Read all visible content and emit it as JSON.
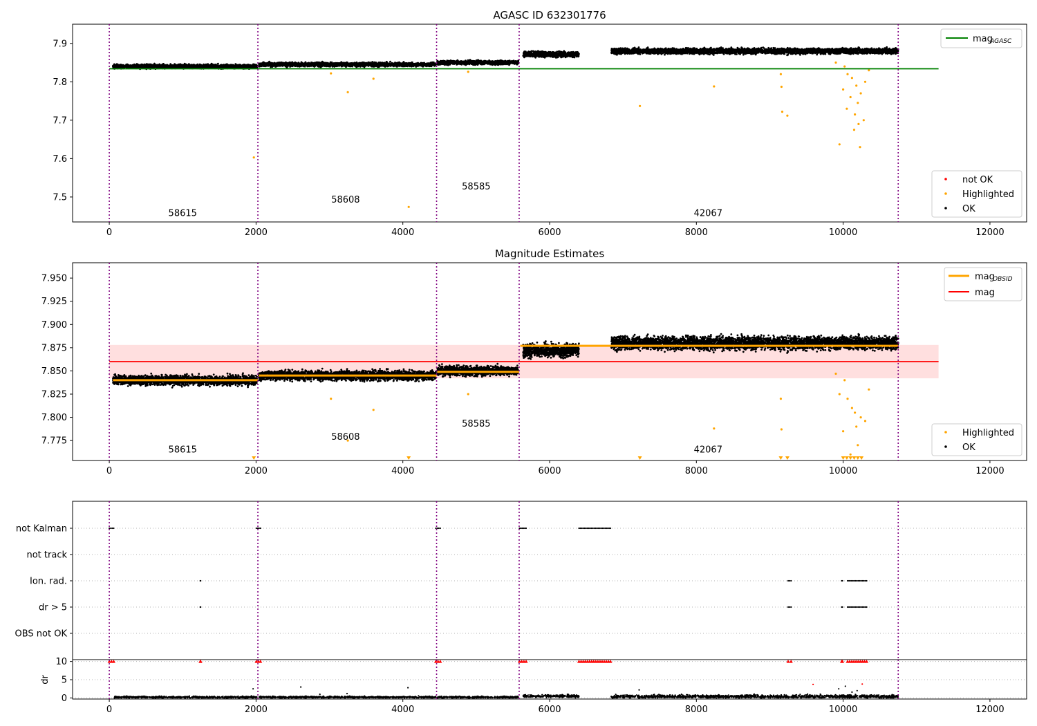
{
  "colors": {
    "ok": "#000000",
    "highlighted": "#ffa500",
    "not_ok": "#ff0000",
    "agasc_line": "#008000",
    "mag_line": "#ff0000",
    "mag_band": "#ffdfdf",
    "obs_line": "#ffa500",
    "obs_boundary": "#800080",
    "ylabel_grid": "#b0b0b0"
  },
  "obs_boundaries": [
    0,
    2025,
    4460,
    5585,
    10750
  ],
  "chart_data": [
    {
      "id": "top",
      "type": "scatter",
      "title": "AGASC ID 632301776",
      "xlim": [
        -500,
        12500
      ],
      "ylim": [
        7.435,
        7.95
      ],
      "xticks": [
        0,
        2000,
        4000,
        6000,
        8000,
        10000,
        12000
      ],
      "yticks": [
        7.5,
        7.6,
        7.7,
        7.8,
        7.9
      ],
      "ytick_labels": [
        "7.5",
        "7.6",
        "7.7",
        "7.8",
        "7.9"
      ],
      "reference_line": {
        "name": "mag_AGASC",
        "y": 7.834,
        "x_range": [
          0,
          11300
        ]
      },
      "legend_lines": [
        {
          "label": "mag",
          "subscript": "AGASC"
        }
      ],
      "legend_markers": [
        "not OK",
        "Highlighted",
        "OK"
      ],
      "obs_labels": [
        {
          "text": "58615",
          "x": 1000,
          "y": 7.45
        },
        {
          "text": "58608",
          "x": 3220,
          "y": 7.485
        },
        {
          "text": "58585",
          "x": 5000,
          "y": 7.52
        },
        {
          "text": "42067",
          "x": 8160,
          "y": 7.45
        }
      ],
      "segments": [
        {
          "x": [
            50,
            2015
          ],
          "y": 7.84,
          "spread": 0.005
        },
        {
          "x": [
            2040,
            4450
          ],
          "y": 7.845,
          "spread": 0.005
        },
        {
          "x": [
            4470,
            5575
          ],
          "y": 7.85,
          "spread": 0.005
        },
        {
          "x": [
            5640,
            6400
          ],
          "y": 7.872,
          "spread": 0.007
        },
        {
          "x": [
            6840,
            10750
          ],
          "y": 7.88,
          "spread": 0.007
        }
      ],
      "highlighted_points": [
        [
          1970,
          7.603
        ],
        [
          4080,
          7.474
        ],
        [
          3250,
          7.773
        ],
        [
          3600,
          7.808
        ],
        [
          3020,
          7.822
        ],
        [
          4890,
          7.826
        ],
        [
          7230,
          7.737
        ],
        [
          8240,
          7.788
        ],
        [
          9150,
          7.82
        ],
        [
          9160,
          7.787
        ],
        [
          9170,
          7.722
        ],
        [
          9240,
          7.712
        ],
        [
          9950,
          7.637
        ],
        [
          10230,
          7.63
        ],
        [
          10150,
          7.675
        ],
        [
          10280,
          7.7
        ],
        [
          10050,
          7.73
        ],
        [
          10100,
          7.76
        ],
        [
          10200,
          7.745
        ],
        [
          10000,
          7.78
        ],
        [
          10300,
          7.8
        ],
        [
          10120,
          7.81
        ],
        [
          10180,
          7.79
        ],
        [
          10060,
          7.82
        ],
        [
          10240,
          7.77
        ],
        [
          9900,
          7.85
        ],
        [
          10020,
          7.84
        ],
        [
          10350,
          7.83
        ],
        [
          10160,
          7.715
        ],
        [
          10210,
          7.69
        ]
      ]
    },
    {
      "id": "middle",
      "type": "scatter",
      "title": "Magnitude Estimates",
      "xlim": [
        -500,
        12500
      ],
      "ylim": [
        7.7535,
        7.9665
      ],
      "xticks": [
        0,
        2000,
        4000,
        6000,
        8000,
        10000,
        12000
      ],
      "yticks": [
        7.775,
        7.8,
        7.825,
        7.85,
        7.875,
        7.9,
        7.925,
        7.95
      ],
      "ytick_labels": [
        "7.775",
        "7.800",
        "7.825",
        "7.850",
        "7.875",
        "7.900",
        "7.925",
        "7.950"
      ],
      "mag": {
        "y": 7.86,
        "band": [
          7.842,
          7.878
        ],
        "x_range": [
          0,
          11300
        ]
      },
      "legend_lines": [
        {
          "label": "mag",
          "subscript": "OBSID"
        },
        {
          "label": "mag",
          "subscript": ""
        }
      ],
      "legend_markers": [
        "Highlighted",
        "OK"
      ],
      "obs_mag": [
        {
          "x": [
            50,
            2025
          ],
          "y": 7.84
        },
        {
          "x": [
            2040,
            4460
          ],
          "y": 7.845
        },
        {
          "x": [
            4470,
            5585
          ],
          "y": 7.849
        },
        {
          "x": [
            5600,
            10750
          ],
          "y": 7.877
        }
      ],
      "obs_labels": [
        {
          "text": "58615",
          "x": 1000,
          "y": 7.762
        },
        {
          "text": "58608",
          "x": 3220,
          "y": 7.776
        },
        {
          "text": "58585",
          "x": 5000,
          "y": 7.79
        },
        {
          "text": "42067",
          "x": 8160,
          "y": 7.762
        }
      ],
      "segments": [
        {
          "x": [
            50,
            2015
          ],
          "y": 7.84,
          "spread": 0.005
        },
        {
          "x": [
            2040,
            4450
          ],
          "y": 7.845,
          "spread": 0.005
        },
        {
          "x": [
            4470,
            5575
          ],
          "y": 7.85,
          "spread": 0.005
        },
        {
          "x": [
            5640,
            6400
          ],
          "y": 7.872,
          "spread": 0.007
        },
        {
          "x": [
            6840,
            10750
          ],
          "y": 7.88,
          "spread": 0.007
        }
      ],
      "clipped_x": [
        1970,
        4080,
        7230,
        9150,
        9240,
        10000,
        10050,
        10100,
        10150,
        10200,
        10250
      ],
      "highlighted_points": [
        [
          3250,
          7.775
        ],
        [
          3600,
          7.808
        ],
        [
          3020,
          7.82
        ],
        [
          4890,
          7.825
        ],
        [
          8240,
          7.788
        ],
        [
          9150,
          7.82
        ],
        [
          9160,
          7.787
        ],
        [
          10300,
          7.796
        ],
        [
          10000,
          7.785
        ],
        [
          10120,
          7.81
        ],
        [
          10180,
          7.79
        ],
        [
          10060,
          7.82
        ],
        [
          10240,
          7.8
        ],
        [
          9900,
          7.847
        ],
        [
          10020,
          7.84
        ],
        [
          10350,
          7.83
        ],
        [
          10100,
          7.76
        ],
        [
          10200,
          7.77
        ],
        [
          10160,
          7.805
        ],
        [
          9950,
          7.825
        ]
      ]
    },
    {
      "id": "flags",
      "type": "scatter",
      "categories": [
        "not Kalman",
        "not track",
        "Ion. rad.",
        "dr > 5",
        "OBS not OK"
      ],
      "xlim": [
        -500,
        12500
      ],
      "flag_clusters": [
        {
          "category": "not Kalman",
          "x": [
            0,
            60
          ]
        },
        {
          "category": "not Kalman",
          "x": [
            2005,
            2060
          ]
        },
        {
          "category": "not Kalman",
          "x": [
            4450,
            4510
          ]
        },
        {
          "category": "not Kalman",
          "x": [
            5590,
            5680
          ]
        },
        {
          "category": "not Kalman",
          "x": [
            6400,
            6830
          ]
        },
        {
          "category": "Ion. rad.",
          "x": [
            1240,
            1245
          ]
        },
        {
          "category": "Ion. rad.",
          "x": [
            9250,
            9290
          ]
        },
        {
          "category": "Ion. rad.",
          "x": [
            9980,
            9990
          ]
        },
        {
          "category": "Ion. rad.",
          "x": [
            10060,
            10320
          ]
        },
        {
          "category": "dr > 5",
          "x": [
            1240,
            1245
          ]
        },
        {
          "category": "dr > 5",
          "x": [
            9250,
            9290
          ]
        },
        {
          "category": "dr > 5",
          "x": [
            9980,
            9990
          ]
        },
        {
          "category": "dr > 5",
          "x": [
            10060,
            10320
          ]
        }
      ]
    },
    {
      "id": "dr",
      "type": "scatter",
      "ylabel": "dr",
      "xlim": [
        -500,
        12500
      ],
      "ylim": [
        -0.3,
        10.5
      ],
      "xticks": [
        0,
        2000,
        4000,
        6000,
        8000,
        10000,
        12000
      ],
      "yticks": [
        0,
        5,
        10
      ],
      "ytick_labels": [
        "0",
        "5",
        "10"
      ],
      "capped_red_ranges": [
        [
          0,
          60
        ],
        [
          2005,
          2060
        ],
        [
          4450,
          4510
        ],
        [
          5590,
          5680
        ],
        [
          6400,
          6830
        ],
        [
          9250,
          9290
        ],
        [
          9980,
          9990
        ],
        [
          10060,
          10320
        ],
        [
          1240,
          1245
        ]
      ],
      "segments": [
        {
          "x": [
            50,
            2015
          ],
          "y": 0.2,
          "spread": 0.25
        },
        {
          "x": [
            2040,
            4450
          ],
          "y": 0.2,
          "spread": 0.25
        },
        {
          "x": [
            4470,
            5575
          ],
          "y": 0.2,
          "spread": 0.25
        },
        {
          "x": [
            5640,
            6400
          ],
          "y": 0.5,
          "spread": 0.35
        },
        {
          "x": [
            6840,
            10750
          ],
          "y": 0.4,
          "spread": 0.45
        }
      ],
      "scatter_points": [
        [
          1960,
          2.5
        ],
        [
          2610,
          3.0
        ],
        [
          3240,
          1.2
        ],
        [
          4070,
          2.8
        ],
        [
          2870,
          1.0
        ],
        [
          7220,
          2.2
        ],
        [
          9940,
          2.5
        ],
        [
          10030,
          3.2
        ],
        [
          10190,
          2.0
        ],
        [
          10260,
          3.8
        ],
        [
          10120,
          1.6
        ],
        [
          9590,
          3.7
        ]
      ]
    }
  ]
}
